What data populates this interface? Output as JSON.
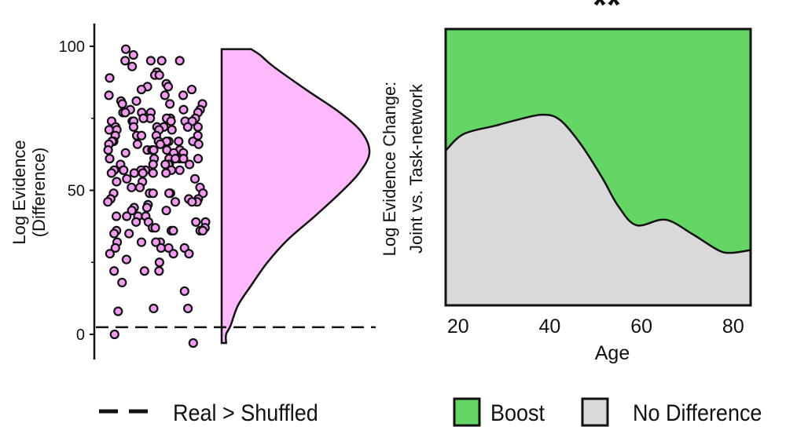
{
  "chart_data": [
    {
      "type": "scatter+violin",
      "ylabel_line1": "Log Evidence",
      "ylabel_line2": "(Difference)",
      "yticks": [
        0,
        50,
        100
      ],
      "yminor": [
        25,
        75
      ],
      "ylim": [
        -8,
        108
      ],
      "reference_line": {
        "value": 2.5,
        "style": "dashed",
        "label": "Real > Shuffled"
      },
      "point_color": "#f29af0",
      "violin_color": "#fdb9fb",
      "points": [
        99,
        97,
        95,
        95,
        95,
        95,
        93,
        91,
        90,
        90,
        89,
        87,
        86,
        86,
        85,
        85,
        83,
        83,
        83,
        81,
        81,
        80,
        80,
        80,
        78,
        78,
        78,
        77,
        77,
        77,
        77,
        77,
        75,
        75,
        75,
        75,
        75,
        74,
        74,
        74,
        74,
        74,
        74,
        72,
        72,
        72,
        72,
        72,
        72,
        71,
        71,
        71,
        71,
        69,
        69,
        69,
        69,
        69,
        67,
        67,
        67,
        67,
        67,
        67,
        67,
        66,
        66,
        66,
        66,
        64,
        64,
        64,
        64,
        64,
        64,
        63,
        63,
        63,
        61,
        61,
        61,
        61,
        61,
        61,
        61,
        59,
        59,
        59,
        59,
        59,
        59,
        57,
        57,
        57,
        57,
        57,
        57,
        57,
        56,
        56,
        56,
        56,
        56,
        54,
        54,
        53,
        53,
        51,
        51,
        51,
        49,
        49,
        49,
        49,
        49,
        49,
        47,
        47,
        47,
        46,
        46,
        46,
        46,
        45,
        44,
        44,
        43,
        43,
        41,
        41,
        41,
        41,
        39,
        39,
        39,
        39,
        37,
        37,
        37,
        36,
        36,
        36,
        36,
        36,
        35,
        35,
        32,
        32,
        32,
        32,
        30,
        30,
        30,
        30,
        28,
        28,
        28,
        26,
        25,
        22,
        22,
        22,
        18,
        15,
        9,
        9,
        8,
        0,
        -3
      ],
      "violin_density": [
        {
          "y": -3,
          "d": 0.03
        },
        {
          "y": 0,
          "d": 0.03
        },
        {
          "y": 3,
          "d": 0.06
        },
        {
          "y": 10,
          "d": 0.11
        },
        {
          "y": 17,
          "d": 0.2
        },
        {
          "y": 25,
          "d": 0.31
        },
        {
          "y": 33,
          "d": 0.45
        },
        {
          "y": 41,
          "d": 0.63
        },
        {
          "y": 49,
          "d": 0.8
        },
        {
          "y": 56,
          "d": 0.93
        },
        {
          "y": 63,
          "d": 1.0
        },
        {
          "y": 70,
          "d": 0.95
        },
        {
          "y": 77,
          "d": 0.8
        },
        {
          "y": 85,
          "d": 0.57
        },
        {
          "y": 93,
          "d": 0.35
        },
        {
          "y": 97,
          "d": 0.26
        },
        {
          "y": 99,
          "d": 0.2
        }
      ]
    },
    {
      "type": "area",
      "title": "**",
      "xlabel": "Age",
      "ylabel_line1": "Log Evidence Change:",
      "ylabel_line2": "Joint vs. Task-network",
      "xticks": [
        20,
        40,
        60,
        80
      ],
      "xlim": [
        17.3,
        83.8
      ],
      "ylim": [
        0,
        1
      ],
      "series": [
        {
          "name": "No Difference",
          "color": "#d9d9d9",
          "x": [
            17.5,
            21.2,
            28.1,
            32.6,
            38.4,
            42.3,
            46.9,
            51.5,
            54.9,
            58.9,
            65.2,
            70.9,
            76.7,
            79.5,
            83.5
          ],
          "y": [
            0.56,
            0.62,
            0.65,
            0.67,
            0.69,
            0.67,
            0.58,
            0.46,
            0.36,
            0.29,
            0.31,
            0.26,
            0.2,
            0.19,
            0.2
          ]
        },
        {
          "name": "Boost",
          "color": "#63d664"
        }
      ]
    }
  ],
  "legend": {
    "dashed_label": "Real > Shuffled",
    "boost_label": "Boost",
    "nodiff_label": "No Difference"
  }
}
